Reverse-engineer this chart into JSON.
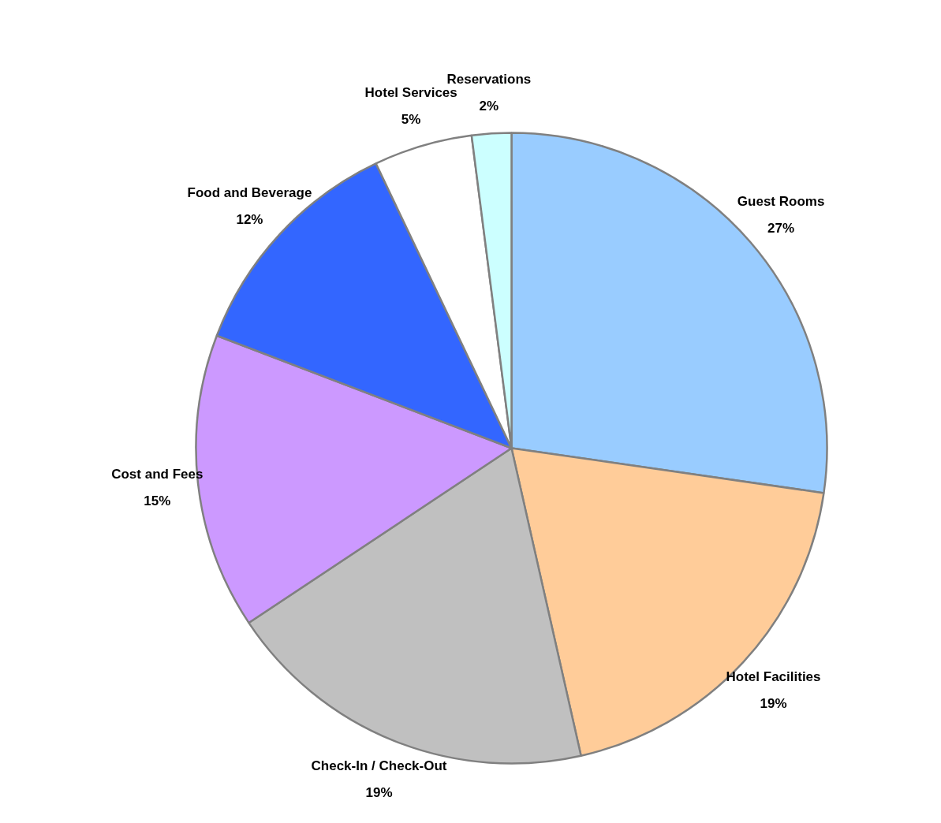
{
  "chart_data": {
    "type": "pie",
    "categories": [
      "Guest Rooms",
      "Hotel Facilities",
      "Check-In / Check-Out",
      "Cost and Fees",
      "Food and Beverage",
      "Hotel Services",
      "Reservations"
    ],
    "values": [
      27,
      19,
      19,
      15,
      12,
      5,
      2
    ],
    "value_labels": [
      "27%",
      "19%",
      "19%",
      "15%",
      "12%",
      "5%",
      "2%"
    ],
    "colors": [
      "#99ccff",
      "#ffcc99",
      "#c0c0c0",
      "#cc99ff",
      "#3366ff",
      "#ffffff",
      "#ccffff"
    ],
    "legend": false
  }
}
